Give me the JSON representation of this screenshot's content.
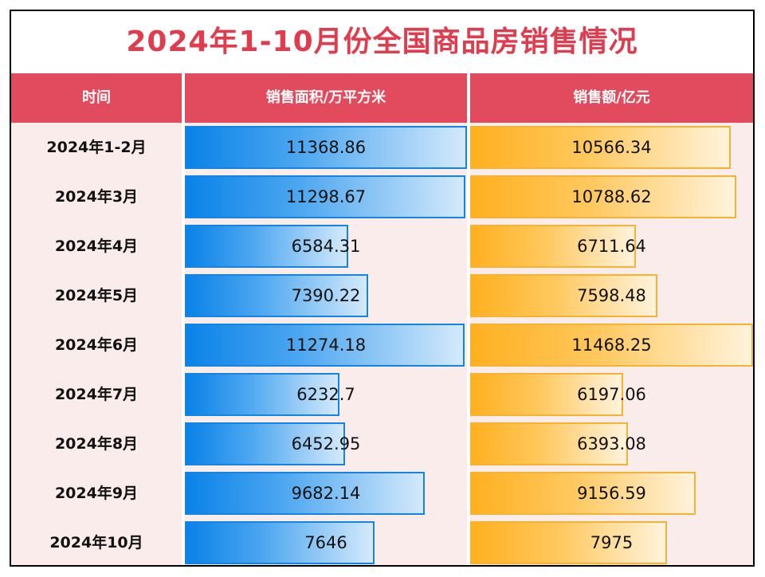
{
  "title": "2024年1-10月份全国商品房销售情况",
  "headers": {
    "time": "时间",
    "area": "销售面积/万平方米",
    "amount": "销售额/亿元"
  },
  "colors": {
    "title": "#e03c4e",
    "header_bg": "#e24b5e",
    "area_bar": "#0a82e8",
    "amount_bar": "#ffb020",
    "row_bg": "#fbecec"
  },
  "chart_data": {
    "type": "table",
    "title": "2024年1-10月份全国商品房销售情况",
    "columns": [
      "时间",
      "销售面积/万平方米",
      "销售额/亿元"
    ],
    "rows": [
      {
        "period": "2024年1-2月",
        "area": "11368.86",
        "amount": "10566.34"
      },
      {
        "period": "2024年3月",
        "area": "11298.67",
        "amount": "10788.62"
      },
      {
        "period": "2024年4月",
        "area": "6584.31",
        "amount": "6711.64"
      },
      {
        "period": "2024年5月",
        "area": "7390.22",
        "amount": "7598.48"
      },
      {
        "period": "2024年6月",
        "area": "11274.18",
        "amount": "11468.25"
      },
      {
        "period": "2024年7月",
        "area": "6232.7",
        "amount": "6197.06"
      },
      {
        "period": "2024年8月",
        "area": "6452.95",
        "amount": "6393.08"
      },
      {
        "period": "2024年9月",
        "area": "9682.14",
        "amount": "9156.59"
      },
      {
        "period": "2024年10月",
        "area": "7646",
        "amount": "7975"
      }
    ]
  }
}
